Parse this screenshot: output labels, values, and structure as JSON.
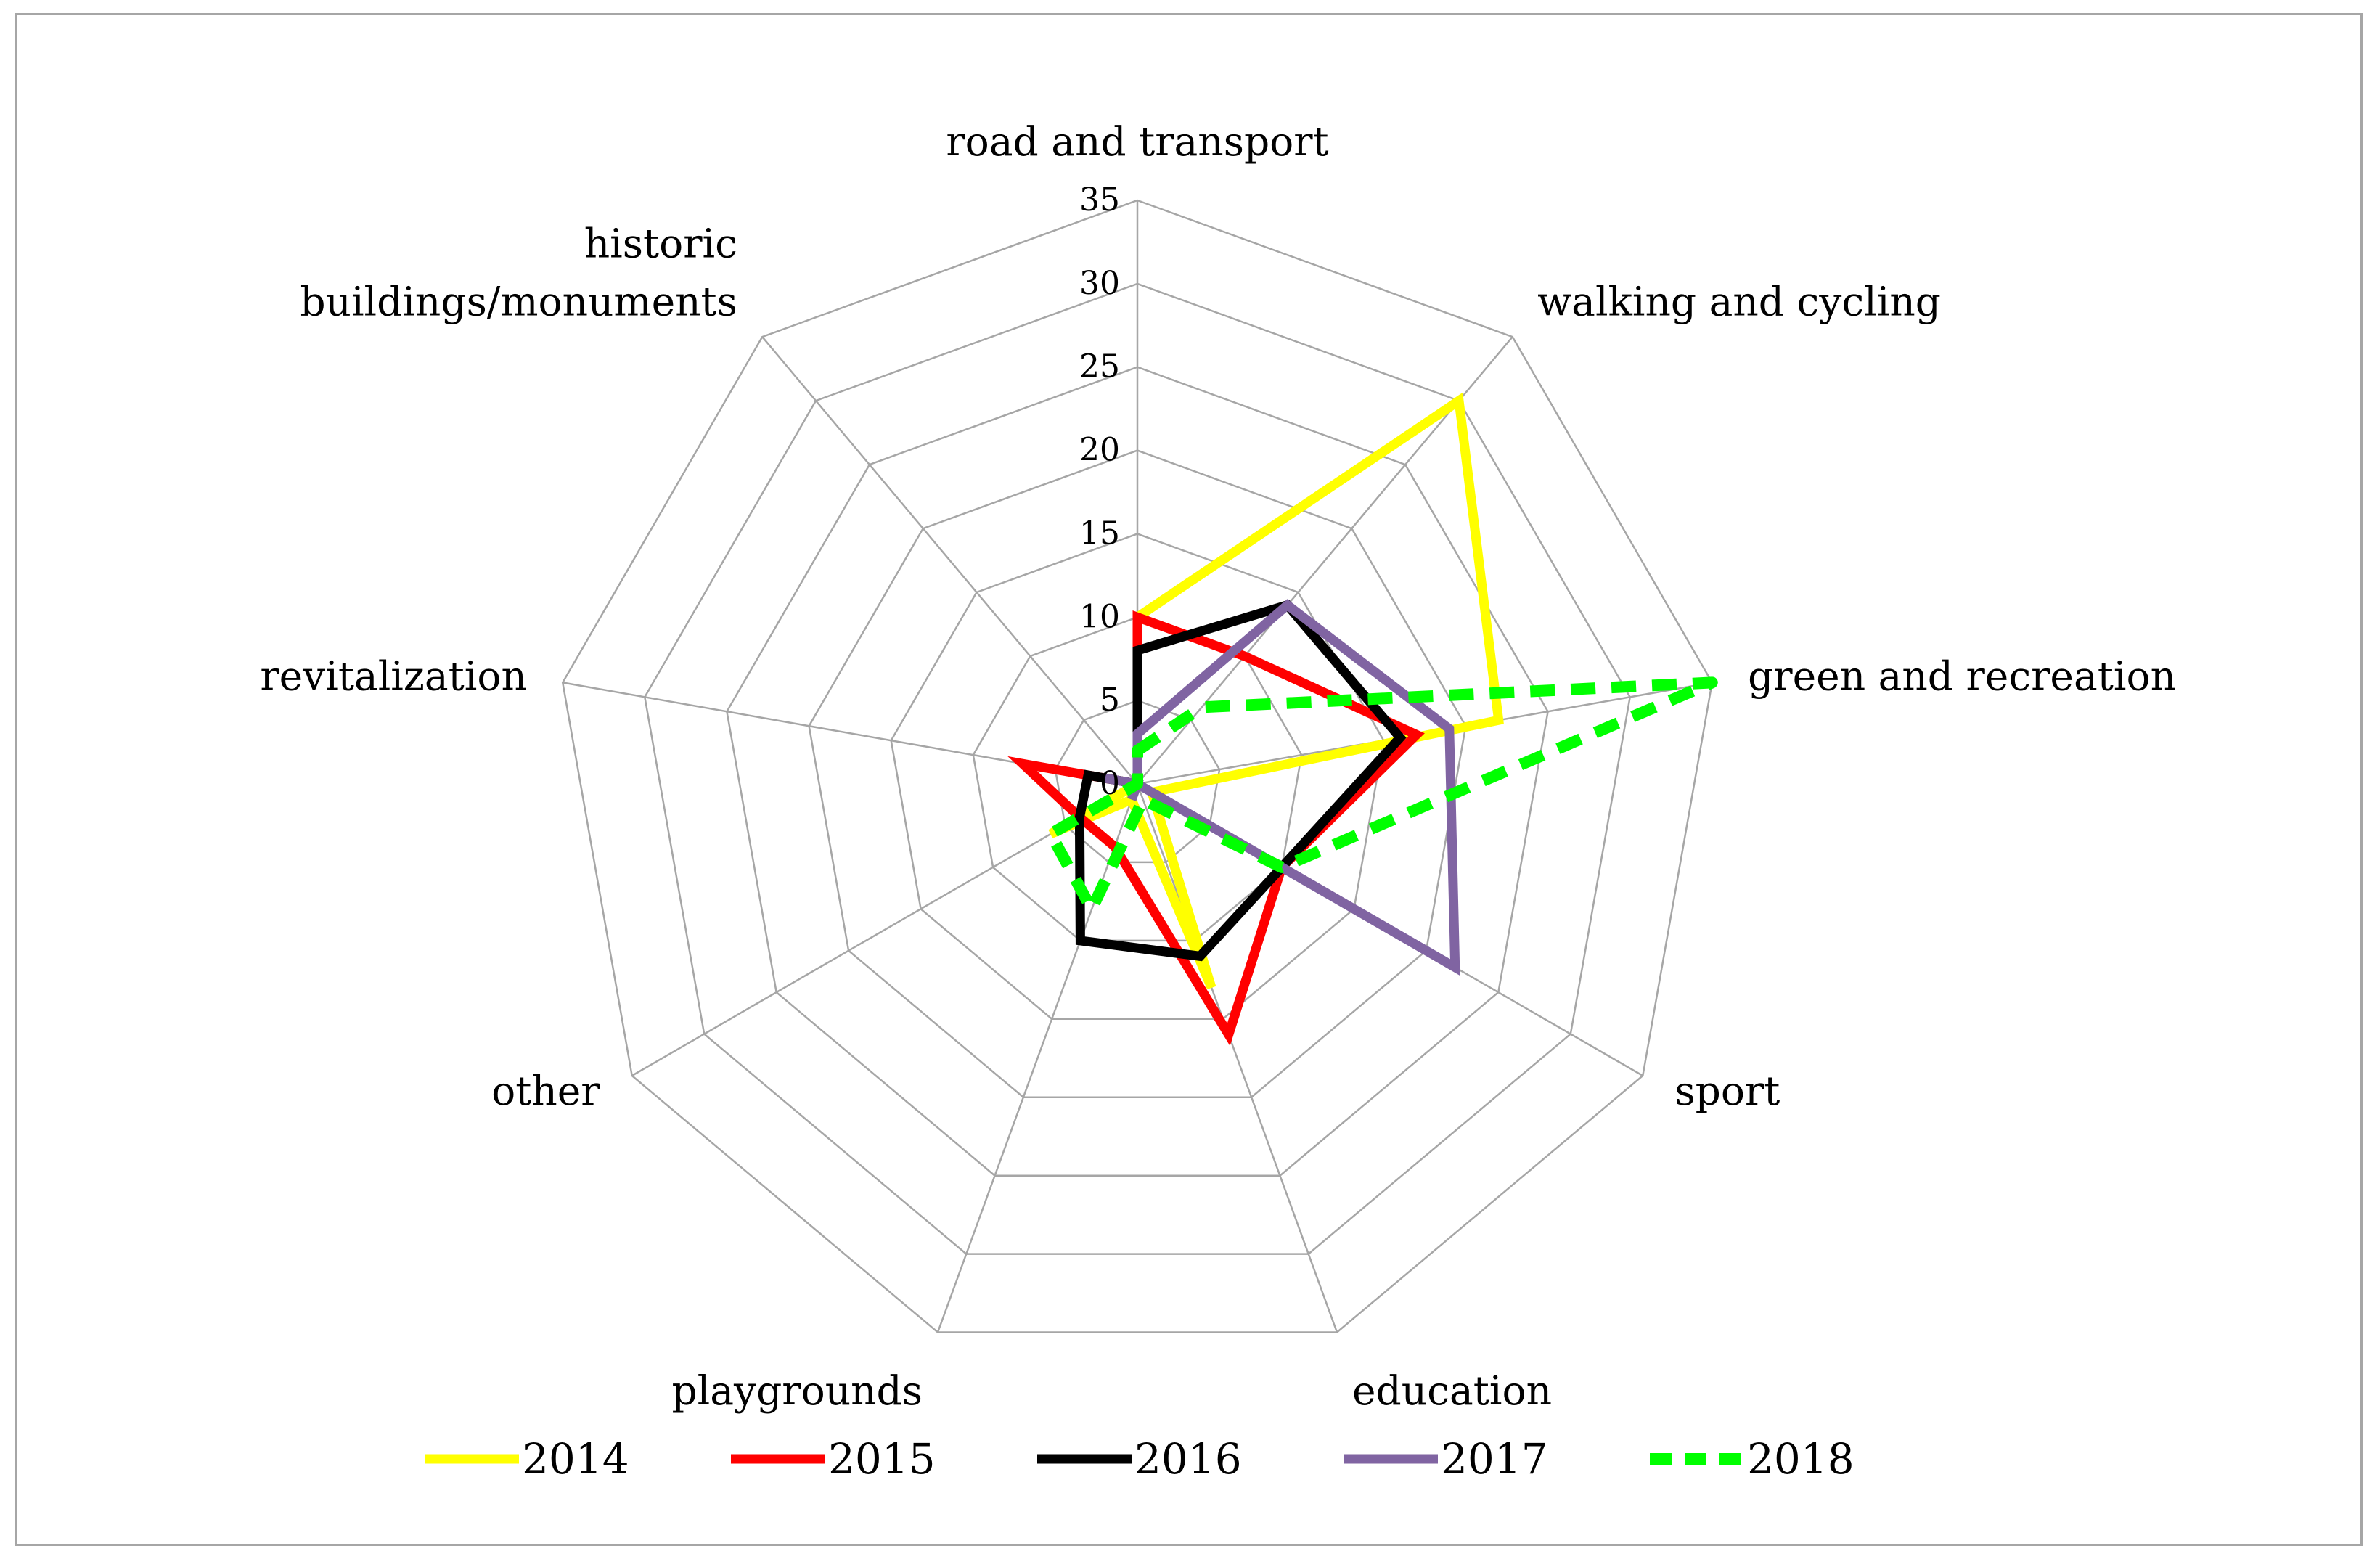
{
  "chart_data": {
    "type": "radar",
    "title": "",
    "categories": [
      "road and transport",
      "walking and cycling",
      "green and recreation",
      "sport",
      "education",
      "playgrounds",
      "other",
      "revitalization",
      "historic buildings/monuments"
    ],
    "axis_label_lines": [
      [
        "road and transport"
      ],
      [
        "walking and cycling"
      ],
      [
        "green and recreation"
      ],
      [
        "sport"
      ],
      [
        "education"
      ],
      [
        "playgrounds"
      ],
      [
        "other"
      ],
      [
        "revitalization"
      ],
      [
        "historic",
        "buildings/monuments"
      ]
    ],
    "r_ticks": [
      0,
      5,
      10,
      15,
      20,
      25,
      30,
      35
    ],
    "r_tick_labels": [
      "0",
      "5",
      "10",
      "15",
      "20",
      "25",
      "30",
      "35"
    ],
    "rlim": [
      0,
      35
    ],
    "grid": true,
    "legend_position": "bottom",
    "series": [
      {
        "name": "2014",
        "color": "#ffff00",
        "dashed": false,
        "values": [
          10,
          30,
          22,
          1,
          13,
          1,
          6,
          0,
          0
        ]
      },
      {
        "name": "2015",
        "color": "#ff0000",
        "dashed": false,
        "values": [
          10,
          10,
          17,
          10,
          16,
          4,
          4,
          7,
          0
        ]
      },
      {
        "name": "2016",
        "color": "#000000",
        "dashed": false,
        "values": [
          8,
          14,
          16,
          10,
          11,
          10,
          4,
          3,
          0
        ]
      },
      {
        "name": "2017",
        "color": "#8064a2",
        "dashed": false,
        "values": [
          3,
          14,
          19,
          22,
          0,
          1,
          0,
          2,
          0
        ]
      },
      {
        "name": "2018",
        "color": "#00ff00",
        "dashed": true,
        "values": [
          2,
          6,
          35,
          10,
          1,
          8,
          6,
          0,
          0
        ]
      }
    ]
  }
}
